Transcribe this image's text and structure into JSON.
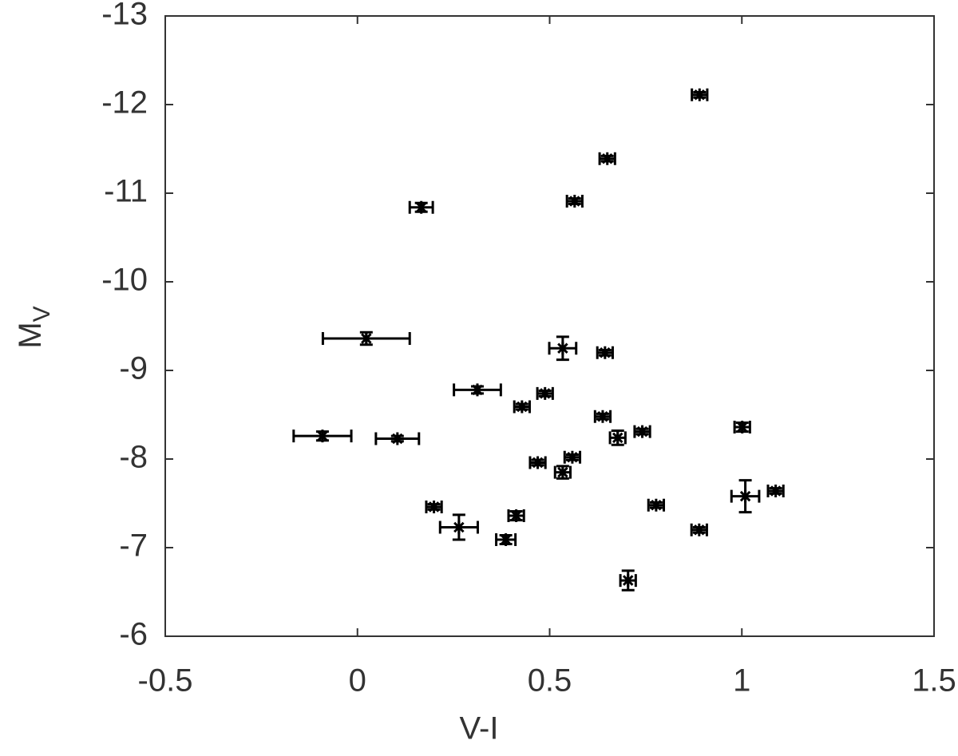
{
  "chart_data": {
    "type": "scatter",
    "xlabel": "V-I",
    "ylabel": "M",
    "ylabel_subscript": "V",
    "xlim": [
      -0.5,
      1.5
    ],
    "xticks": [
      -0.5,
      0,
      0.5,
      1,
      1.5
    ],
    "ylim": [
      -6,
      -13
    ],
    "yticks": [
      -6,
      -7,
      -8,
      -9,
      -10,
      -11,
      -12,
      -13
    ],
    "color": "#000000",
    "x": [
      0.89,
      0.65,
      0.565,
      0.166,
      0.023,
      0.534,
      0.644,
      0.312,
      0.488,
      0.428,
      0.638,
      -0.091,
      0.104,
      0.741,
      0.677,
      1.001,
      0.559,
      0.469,
      0.534,
      1.009,
      1.088,
      0.199,
      0.777,
      0.413,
      0.264,
      0.889,
      0.386,
      0.704
    ],
    "values": [
      -12.11,
      -11.39,
      -10.91,
      -10.84,
      -9.36,
      -9.25,
      -9.2,
      -8.78,
      -8.74,
      -8.59,
      -8.48,
      -8.26,
      -8.23,
      -8.31,
      -8.24,
      -8.36,
      -8.02,
      -7.96,
      -7.85,
      -7.58,
      -7.64,
      -7.46,
      -7.48,
      -7.36,
      -7.23,
      -7.2,
      -7.09,
      -6.63
    ],
    "xerr": [
      0.02,
      0.02,
      0.02,
      0.03,
      0.113,
      0.035,
      0.02,
      0.061,
      0.02,
      0.02,
      0.02,
      0.075,
      0.056,
      0.02,
      0.02,
      0.02,
      0.02,
      0.02,
      0.02,
      0.036,
      0.02,
      0.02,
      0.02,
      0.02,
      0.049,
      0.02,
      0.025,
      0.02
    ],
    "yerr": [
      0.03,
      0.03,
      0.03,
      0.05,
      0.07,
      0.13,
      0.03,
      0.04,
      0.03,
      0.03,
      0.03,
      0.05,
      0.03,
      0.03,
      0.08,
      0.05,
      0.03,
      0.03,
      0.07,
      0.18,
      0.03,
      0.03,
      0.03,
      0.05,
      0.14,
      0.03,
      0.05,
      0.11
    ]
  }
}
